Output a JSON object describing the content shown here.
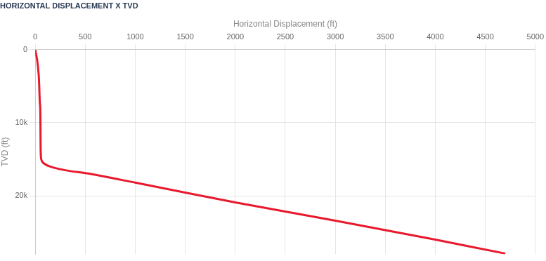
{
  "chart_data": {
    "type": "line",
    "title": "HORIZONTAL DISPLACEMENT X TVD",
    "x_label": "Horizontal Displacement (ft)",
    "y_label": "TVD (ft)",
    "x": [
      0,
      20,
      35,
      40,
      45,
      50,
      52,
      53,
      55,
      60,
      80,
      150,
      300,
      550,
      1000,
      2000,
      3000,
      4000,
      4700
    ],
    "values": [
      0,
      1500,
      3500,
      5000,
      7000,
      8000,
      10000,
      12000,
      14000,
      15000,
      15500,
      16000,
      16500,
      17000,
      18200,
      20900,
      23400,
      26000,
      27900
    ],
    "color": "#e8192c",
    "xlim": [
      0,
      5000
    ],
    "xticks": [
      0,
      500,
      1000,
      1500,
      2000,
      2500,
      3000,
      3500,
      4000,
      4500,
      5000
    ],
    "ylim": [
      0,
      28000
    ],
    "yticks": [
      0,
      {
        "value": 10000,
        "label": "10k"
      },
      {
        "value": 20000,
        "label": "20k"
      }
    ],
    "grid": true
  }
}
